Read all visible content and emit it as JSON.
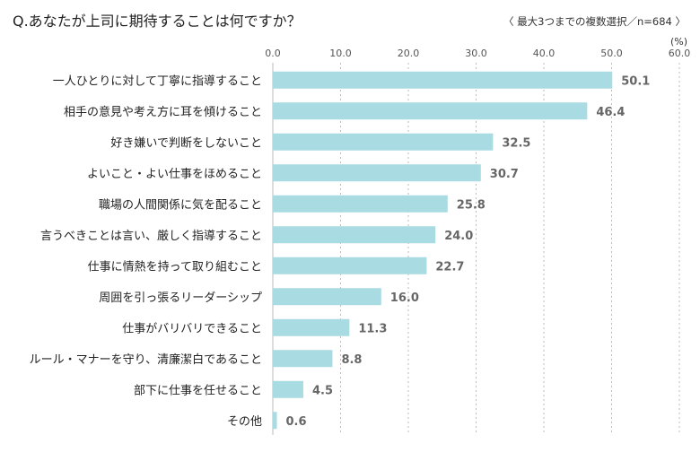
{
  "header": {
    "title": "Q.あなたが上司に期待することは何ですか？",
    "note": "〈 最大3つまでの複数選択／n=684 〉",
    "unit": "(%)"
  },
  "chart_data": {
    "type": "bar",
    "orientation": "horizontal",
    "categories": [
      "一人ひとりに対して丁寧に指導すること",
      "相手の意見や考え方に耳を傾けること",
      "好き嫌いで判断をしないこと",
      "よいこと・よい仕事をほめること",
      "職場の人間関係に気を配ること",
      "言うべきことは言い、厳しく指導すること",
      "仕事に情熱を持って取り組むこと",
      "周囲を引っ張るリーダーシップ",
      "仕事がバリバリできること",
      "ルール・マナーを守り、清廉潔白であること",
      "部下に仕事を任せること",
      "その他"
    ],
    "values": [
      50.1,
      46.4,
      32.5,
      30.7,
      25.8,
      24.0,
      22.7,
      16.0,
      11.3,
      8.8,
      4.5,
      0.6
    ],
    "xlim": [
      0,
      60
    ],
    "xticks": [
      0,
      10,
      20,
      30,
      40,
      50,
      60
    ],
    "grid": true,
    "bar_color": "#a9dbe3",
    "grid_color": "#bbbbbb"
  }
}
